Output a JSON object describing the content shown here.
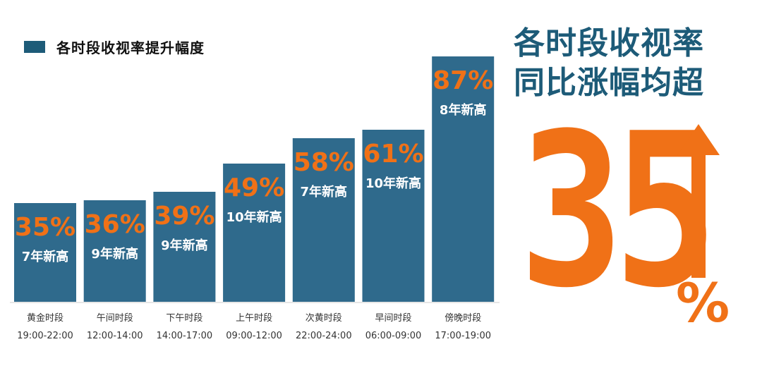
{
  "colors": {
    "bar": "#2f6a8c",
    "accent": "#f07117",
    "dark": "#1d5b78",
    "axis": "#cccccc"
  },
  "legend": {
    "label": "各时段收视率提升幅度"
  },
  "headline": {
    "line1": "各时段收视率",
    "line2": "同比涨幅均超"
  },
  "highlight": {
    "number": "35",
    "unit": "%",
    "icon": "up-arrow-icon"
  },
  "chart_data": {
    "type": "bar",
    "categories": [
      "黄金时段",
      "午间时段",
      "下午时段",
      "上午时段",
      "次黄时段",
      "早间时段",
      "傍晚时段"
    ],
    "time_ranges": [
      "19:00-22:00",
      "12:00-14:00",
      "14:00-17:00",
      "09:00-12:00",
      "22:00-24:00",
      "06:00-09:00",
      "17:00-19:00"
    ],
    "values": [
      35,
      36,
      39,
      49,
      58,
      61,
      87
    ],
    "value_labels": [
      "35%",
      "36%",
      "39%",
      "49%",
      "58%",
      "61%",
      "87%"
    ],
    "notes": [
      "7年新高",
      "9年新高",
      "9年新高",
      "10年新高",
      "7年新高",
      "10年新高",
      "8年新高"
    ],
    "title": "",
    "xlabel": "",
    "ylabel": "",
    "ylim": [
      0,
      100
    ],
    "grid": false,
    "legend": "top-left"
  }
}
